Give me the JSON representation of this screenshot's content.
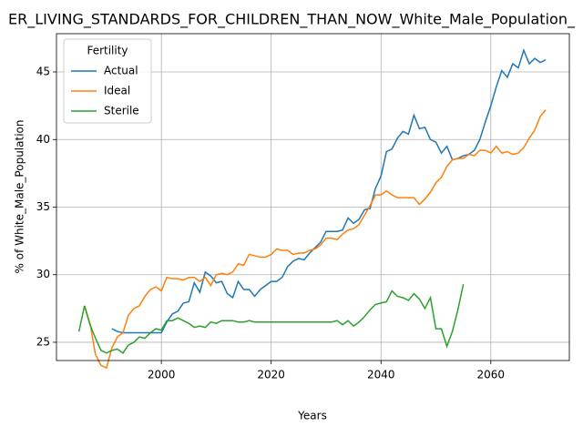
{
  "chart_data": {
    "type": "line",
    "title": "ER_LIVING_STANDARDS_FOR_CHILDREN_THAN_NOW_White_Male_Population_",
    "xlabel": "Years",
    "ylabel": "% of White_Male_Population",
    "x": [
      1985,
      1986,
      1987,
      1988,
      1989,
      1990,
      1991,
      1992,
      1993,
      1994,
      1995,
      1996,
      1997,
      1998,
      1999,
      2000,
      2001,
      2002,
      2003,
      2004,
      2005,
      2006,
      2007,
      2008,
      2009,
      2010,
      2011,
      2012,
      2013,
      2014,
      2015,
      2016,
      2017,
      2018,
      2019,
      2020,
      2021,
      2022,
      2023,
      2024,
      2025,
      2026,
      2027,
      2028,
      2029,
      2030,
      2031,
      2032,
      2033,
      2034,
      2035,
      2036,
      2037,
      2038,
      2039,
      2040,
      2041,
      2042,
      2043,
      2044,
      2045,
      2046,
      2047,
      2048,
      2049,
      2050,
      2051,
      2052,
      2053,
      2054,
      2055,
      2056,
      2057,
      2058,
      2059,
      2060,
      2061,
      2062,
      2063,
      2064,
      2065,
      2066,
      2067,
      2068,
      2069,
      2070
    ],
    "series": [
      {
        "name": "Actual",
        "color": "#1f77b4",
        "values": [
          null,
          null,
          null,
          null,
          null,
          null,
          26.0,
          25.8,
          25.7,
          25.7,
          25.7,
          25.7,
          25.7,
          25.7,
          25.7,
          25.7,
          26.5,
          27.1,
          27.3,
          27.9,
          28.0,
          29.4,
          28.7,
          30.2,
          29.9,
          29.4,
          29.5,
          28.6,
          28.3,
          29.5,
          28.9,
          28.9,
          28.4,
          28.9,
          29.2,
          29.5,
          29.5,
          29.8,
          30.6,
          31.0,
          31.2,
          31.1,
          31.6,
          32.0,
          32.4,
          33.2,
          33.2,
          33.2,
          33.3,
          34.2,
          33.8,
          34.1,
          34.8,
          34.9,
          36.4,
          37.3,
          39.1,
          39.3,
          40.1,
          40.6,
          40.4,
          41.8,
          40.8,
          40.9,
          40.0,
          39.8,
          39.0,
          39.5,
          38.5,
          38.6,
          38.8,
          38.9,
          39.2,
          40.0,
          41.3,
          42.5,
          43.9,
          45.1,
          44.6,
          45.6,
          45.3,
          46.6,
          45.6,
          46.0,
          45.7,
          45.9
        ]
      },
      {
        "name": "Ideal",
        "color": "#ff7f0e",
        "values": [
          null,
          27.7,
          26.4,
          24.1,
          23.3,
          23.1,
          24.6,
          25.4,
          25.7,
          27.0,
          27.5,
          27.7,
          28.4,
          28.9,
          29.1,
          28.8,
          29.8,
          29.7,
          29.7,
          29.6,
          29.8,
          29.8,
          29.5,
          29.8,
          29.2,
          30.0,
          30.1,
          30.0,
          30.2,
          30.8,
          30.7,
          31.5,
          31.4,
          31.3,
          31.3,
          31.5,
          31.9,
          31.8,
          31.8,
          31.5,
          31.6,
          31.6,
          31.8,
          31.9,
          32.2,
          32.7,
          32.7,
          32.6,
          33.0,
          33.3,
          33.4,
          33.7,
          34.4,
          35.1,
          35.9,
          35.9,
          36.2,
          35.9,
          35.7,
          35.7,
          35.7,
          35.7,
          35.2,
          35.6,
          36.1,
          36.8,
          37.2,
          38.0,
          38.5,
          38.6,
          38.6,
          38.9,
          38.8,
          39.2,
          39.2,
          39.0,
          39.5,
          39.0,
          39.1,
          38.9,
          39.0,
          39.4,
          40.1,
          40.7,
          41.7,
          42.2
        ]
      },
      {
        "name": "Sterile",
        "color": "#2ca02c",
        "values": [
          25.8,
          27.7,
          26.3,
          25.3,
          24.4,
          24.2,
          24.4,
          24.5,
          24.2,
          24.8,
          25.0,
          25.4,
          25.3,
          25.7,
          26.0,
          25.9,
          26.6,
          26.6,
          26.8,
          26.6,
          26.4,
          26.1,
          26.2,
          26.1,
          26.5,
          26.4,
          26.6,
          26.6,
          26.6,
          26.5,
          26.5,
          26.6,
          26.5,
          26.5,
          26.5,
          26.5,
          26.5,
          26.5,
          26.5,
          26.5,
          26.5,
          26.5,
          26.5,
          26.5,
          26.5,
          26.5,
          26.5,
          26.6,
          26.3,
          26.6,
          26.2,
          26.5,
          26.9,
          27.4,
          27.8,
          27.9,
          28.0,
          28.8,
          28.4,
          28.3,
          28.1,
          28.6,
          28.2,
          27.5,
          28.3,
          26.0,
          26.0,
          24.7,
          25.8,
          27.4,
          29.3,
          null,
          null,
          null,
          null,
          null,
          null,
          null,
          null,
          null,
          null,
          null,
          null,
          null,
          null,
          null
        ]
      }
    ],
    "xlim": [
      1980.9,
      2074.3
    ],
    "ylim": [
      23.65,
      47.83
    ],
    "xticks": [
      2000,
      2020,
      2040,
      2060
    ],
    "yticks": [
      25,
      30,
      35,
      40,
      45
    ],
    "grid": true,
    "legend_title": "Fertility",
    "legend_position": "upper left"
  }
}
